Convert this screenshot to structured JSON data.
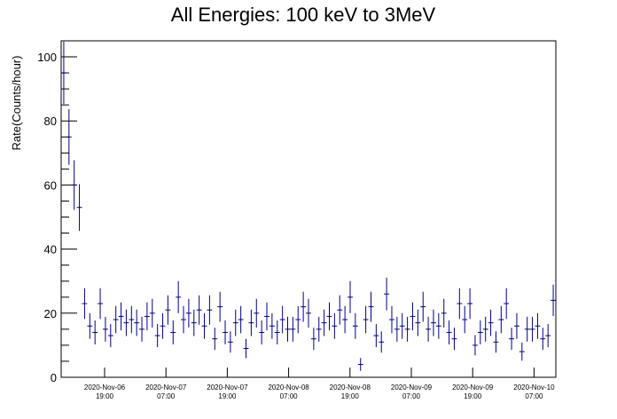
{
  "chart_data": {
    "type": "scatter",
    "title": "All Energies:  100 keV to 3MeV",
    "xlabel": "",
    "ylabel": "Rate(Counts/hour)",
    "ylim": [
      0,
      105
    ],
    "yticks": [
      0,
      20,
      40,
      60,
      80,
      100
    ],
    "xtick_labels": [
      [
        "2020-Nov-06",
        "19:00"
      ],
      [
        "2020-Nov-07",
        "07:00"
      ],
      [
        "2020-Nov-07",
        "19:00"
      ],
      [
        "2020-Nov-08",
        "07:00"
      ],
      [
        "2020-Nov-08",
        "19:00"
      ],
      [
        "2020-Nov-09",
        "07:00"
      ],
      [
        "2020-Nov-09",
        "19:00"
      ],
      [
        "2020-Nov-10",
        "07:00"
      ]
    ],
    "series_color": "#000080",
    "values": [
      95,
      75,
      60,
      53,
      23,
      16,
      14,
      23,
      15,
      13,
      18,
      19,
      17,
      18,
      17,
      15,
      19,
      20,
      13,
      16,
      21,
      14,
      25,
      18,
      20,
      17,
      21,
      16,
      21,
      12,
      22,
      14,
      11,
      17,
      18,
      9,
      17,
      20,
      14,
      19,
      16,
      14,
      18,
      15,
      15,
      18,
      22,
      20,
      12,
      15,
      17,
      19,
      16,
      21,
      18,
      25,
      16,
      4,
      18,
      22,
      13,
      11,
      26,
      18,
      15,
      16,
      15,
      19,
      17,
      22,
      15,
      17,
      16,
      20,
      14,
      12,
      23,
      18,
      23,
      10,
      14,
      15,
      17,
      11,
      18,
      23,
      12,
      16,
      8,
      15,
      15,
      16,
      12,
      13,
      24
    ]
  }
}
